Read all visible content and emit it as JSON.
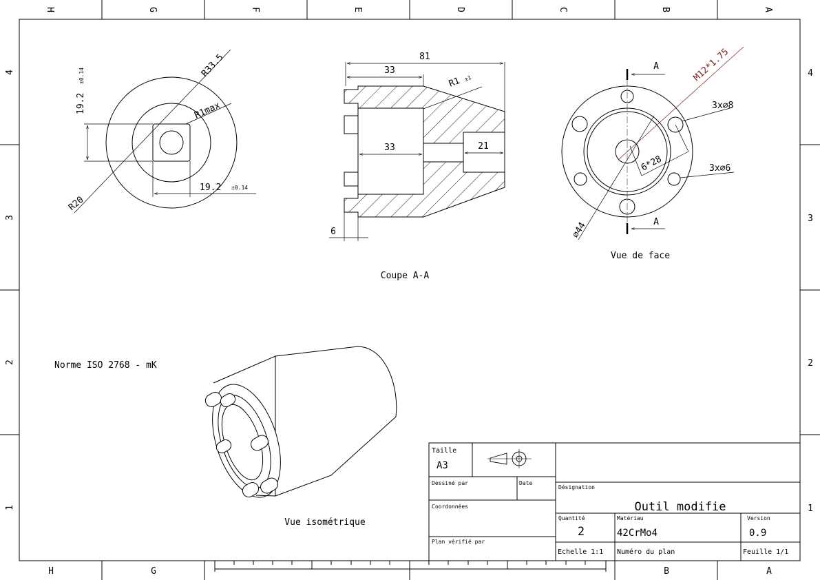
{
  "frame": {
    "columns": [
      "H",
      "G",
      "F",
      "E",
      "D",
      "C",
      "B",
      "A"
    ],
    "rows": [
      "4",
      "3",
      "2",
      "1"
    ]
  },
  "views": {
    "section_label": "Coupe A-A",
    "front_label": "Vue de face",
    "iso_label": "Vue isométrique"
  },
  "left_view_dims": {
    "r_outer": "R33.5",
    "r_corner": "R1max",
    "r20": "R20",
    "vert_dim": "19.2",
    "vert_tol": "±0.14",
    "horiz_dim": "19.2",
    "horiz_tol": "±0.14"
  },
  "section_dims": {
    "overall": "81",
    "top_len": "33",
    "inner_len": "33",
    "bore_len": "21",
    "fillet": "R1",
    "fillet_tol": "±1",
    "pin_len": "6"
  },
  "front_dims": {
    "section_mark": "A",
    "thread": "M12*1.75",
    "holes_8": "3x⌀8",
    "holes_6": "3x⌀6",
    "pcd": "6*28",
    "outer_dia": "⌀44"
  },
  "notes": {
    "norme": "Norme ISO 2768 - mK"
  },
  "title_block": {
    "taille_label": "Taille",
    "taille_value": "A3",
    "dessine_label": "Dessiné par",
    "date_label": "Date",
    "coordonnees_label": "Coordonnées",
    "verifie_label": "Plan vérifié par",
    "designation_label": "Désignation",
    "designation_value": "Outil modifie",
    "quantite_label": "Quantité",
    "quantite_value": "2",
    "materiau_label": "Matériau",
    "materiau_value": "42CrMo4",
    "version_label": "Version",
    "version_value": "0.9",
    "echelle_label": "Echelle 1:1",
    "numero_label": "Numéro du plan",
    "feuille_label": "Feuille 1/1"
  }
}
